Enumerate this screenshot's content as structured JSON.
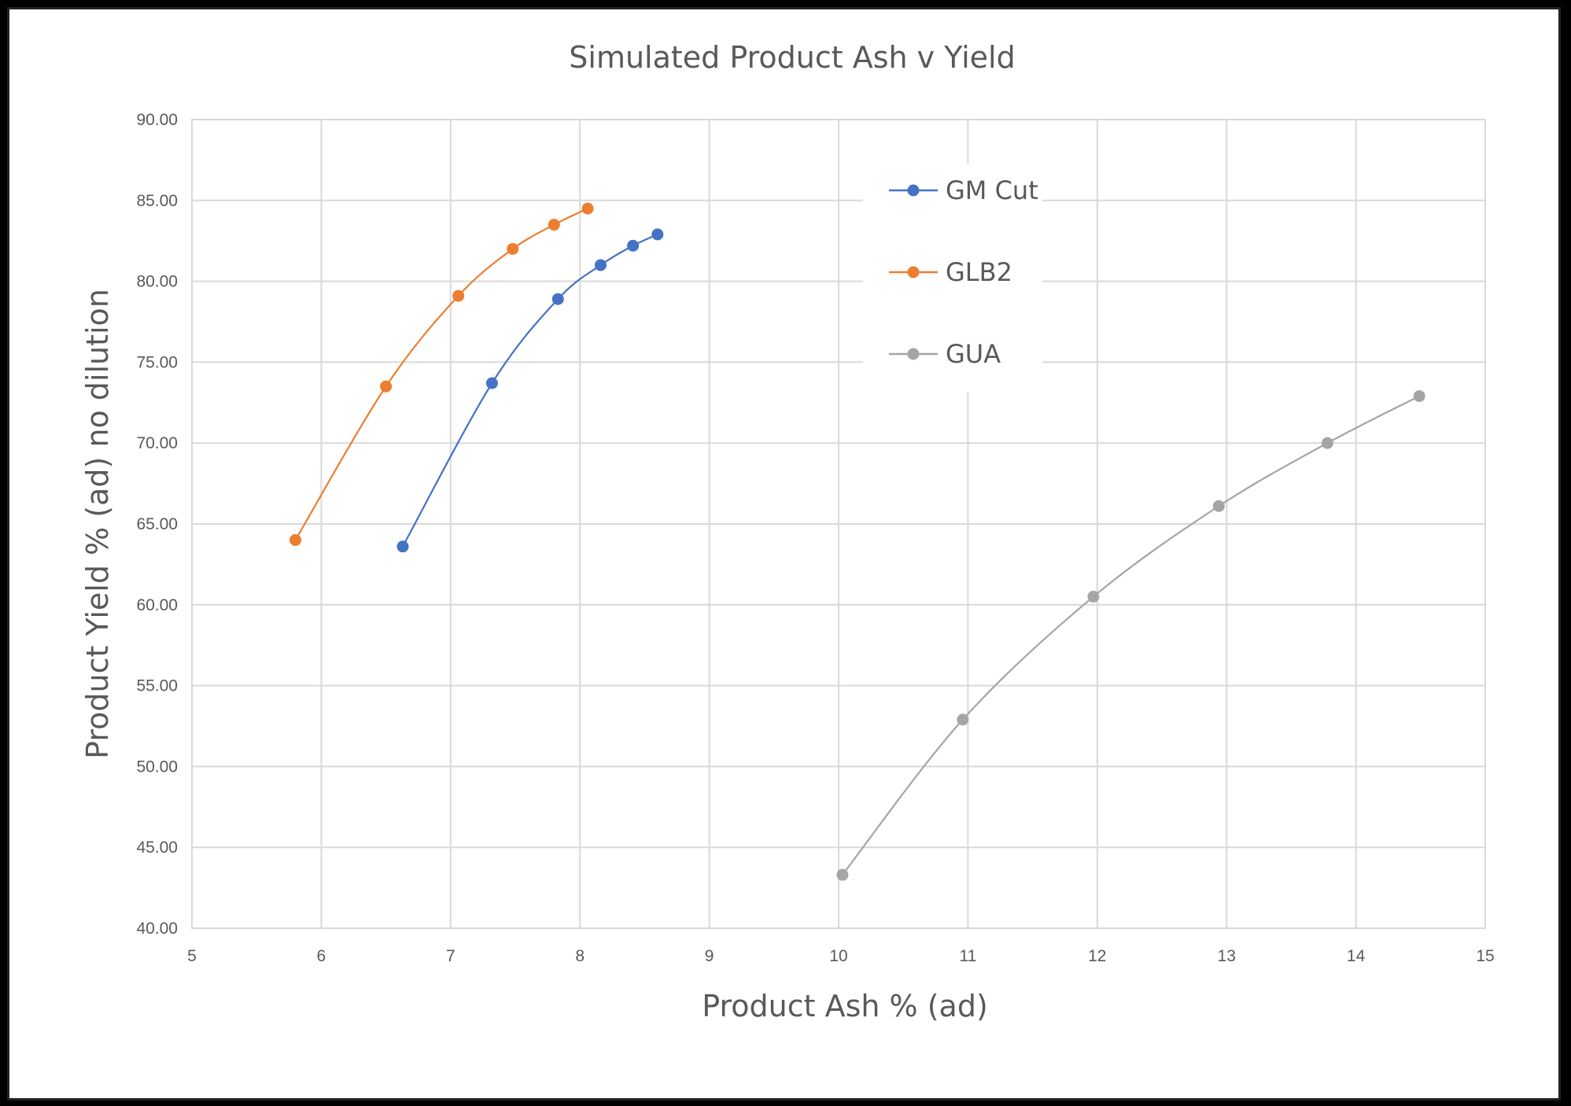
{
  "chart_data": {
    "type": "scatter",
    "title": "Simulated Product Ash v Yield",
    "xlabel": "Product Ash % (ad)",
    "ylabel": "Product Yield % (ad) no dilution",
    "xlim": [
      5,
      15
    ],
    "ylim": [
      40,
      90
    ],
    "x_ticks": [
      "5",
      "6",
      "7",
      "8",
      "9",
      "10",
      "11",
      "12",
      "13",
      "14",
      "15"
    ],
    "y_ticks": [
      "40.00",
      "45.00",
      "50.00",
      "55.00",
      "60.00",
      "65.00",
      "70.00",
      "75.00",
      "80.00",
      "85.00",
      "90.00"
    ],
    "grid": true,
    "legend_position": "top-center",
    "series": [
      {
        "name": "GM Cut",
        "color": "#4472c4",
        "x": [
          6.63,
          7.32,
          7.83,
          8.16,
          8.41,
          8.6
        ],
        "y": [
          63.6,
          73.7,
          78.9,
          81.0,
          82.2,
          82.9
        ]
      },
      {
        "name": "GLB2",
        "color": "#ed7d31",
        "x": [
          5.8,
          6.5,
          7.06,
          7.48,
          7.8,
          8.06
        ],
        "y": [
          64.0,
          73.5,
          79.1,
          82.0,
          83.5,
          84.5
        ]
      },
      {
        "name": "GUA",
        "color": "#a5a5a5",
        "x": [
          10.03,
          10.96,
          11.97,
          12.94,
          13.78,
          14.49
        ],
        "y": [
          43.3,
          52.9,
          60.5,
          66.1,
          70.0,
          72.9
        ]
      }
    ]
  }
}
